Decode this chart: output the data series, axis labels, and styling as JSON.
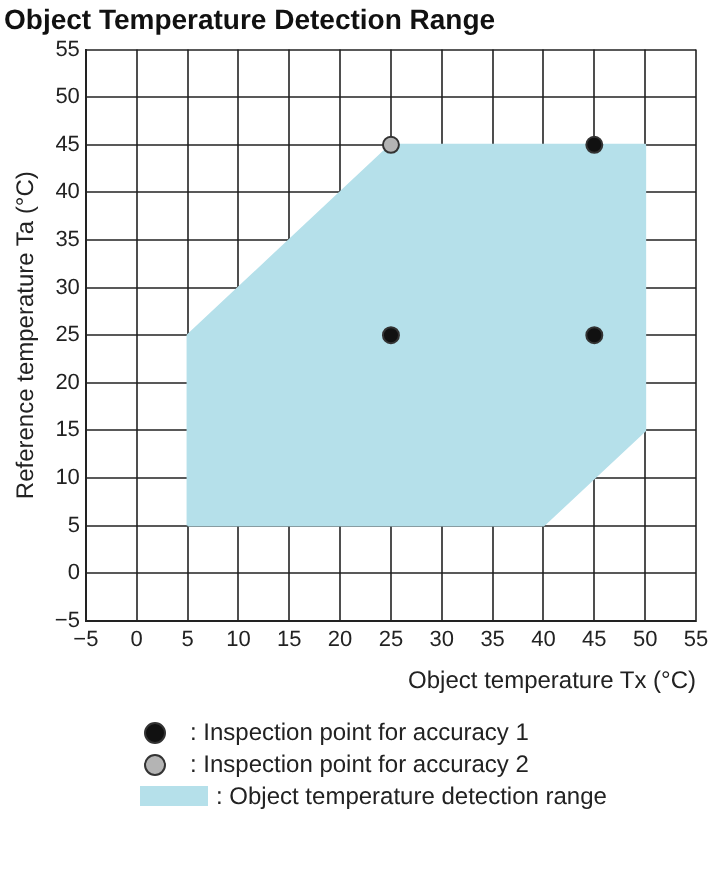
{
  "chart_data": {
    "type": "scatter",
    "title": "Object Temperature Detection Range",
    "xlabel": "Object temperature Tx (°C)",
    "ylabel": "Reference temperature Ta (°C)",
    "xlim": [
      -5,
      55
    ],
    "ylim": [
      -5,
      55
    ],
    "xticks": [
      {
        "value": -5,
        "label": "−5"
      },
      0,
      5,
      10,
      15,
      20,
      25,
      30,
      35,
      40,
      45,
      50,
      55
    ],
    "yticks": [
      {
        "value": -5,
        "label": "−5"
      },
      0,
      5,
      10,
      15,
      20,
      25,
      30,
      35,
      40,
      45,
      50,
      55
    ],
    "grid": true,
    "legend": "bottom",
    "series": [
      {
        "name": ": Inspection point for accuracy 1",
        "marker": "circle",
        "color": "#111111",
        "x": [
          25,
          45,
          45
        ],
        "values": [
          25,
          25,
          45
        ]
      },
      {
        "name": ": Inspection point for accuracy 2",
        "marker": "circle",
        "color": "#b4b4b4",
        "x": [
          25
        ],
        "values": [
          45
        ]
      },
      {
        "name": ": Object temperature detection range",
        "type": "area",
        "color": "#b5e0ea",
        "x": [
          5,
          5,
          25,
          50,
          50,
          40,
          5
        ],
        "values": [
          5,
          25,
          45,
          45,
          15,
          5,
          5
        ]
      }
    ]
  }
}
